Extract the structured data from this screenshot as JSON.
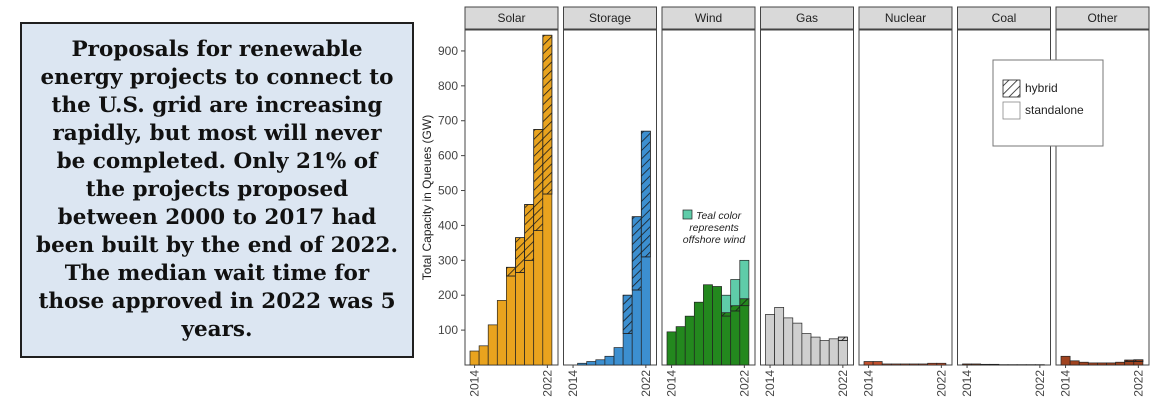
{
  "callout": {
    "text": "Proposals for renewable energy projects to connect to the U.S. grid are increasing rapidly, but most will never be completed.  Only 21% of the projects proposed between 2000 to 2017 had been built by the end of 2022.  The median wait time for those approved in 2022 was 5 years."
  },
  "chart_data": {
    "type": "bar",
    "stacked": true,
    "faceted": true,
    "ylabel": "Total Capacity in Queues (GW)",
    "ylim": [
      0,
      960
    ],
    "yticks": [
      100,
      200,
      300,
      400,
      500,
      600,
      700,
      800,
      900
    ],
    "years": [
      2014,
      2015,
      2016,
      2017,
      2018,
      2019,
      2020,
      2021,
      2022
    ],
    "x_tick_labels": [
      "2014",
      "2022"
    ],
    "grid": false,
    "legend": {
      "position": "top-right",
      "entries": [
        {
          "label": "hybrid",
          "pattern": "hatched"
        },
        {
          "label": "standalone",
          "pattern": "plain"
        }
      ]
    },
    "annotation": {
      "panel": "Wind",
      "text_lines": [
        "Teal color",
        "represents",
        "offshore wind"
      ],
      "color": "#5fcca9"
    },
    "panels": [
      {
        "name": "Solar",
        "color": "#e9a31e",
        "standalone": [
          40,
          55,
          115,
          185,
          255,
          265,
          300,
          385,
          490
        ],
        "hybrid": [
          0,
          0,
          0,
          0,
          25,
          100,
          160,
          290,
          455
        ]
      },
      {
        "name": "Storage",
        "color": "#3c8fd0",
        "standalone": [
          0,
          5,
          10,
          15,
          25,
          50,
          90,
          215,
          310
        ],
        "hybrid": [
          0,
          0,
          0,
          0,
          0,
          0,
          110,
          210,
          360
        ]
      },
      {
        "name": "Wind",
        "color": "#23881e",
        "offshore_color": "#5fcca9",
        "standalone": [
          95,
          110,
          140,
          180,
          230,
          225,
          140,
          155,
          170
        ],
        "hybrid": [
          0,
          0,
          0,
          0,
          0,
          0,
          10,
          15,
          20
        ],
        "offshore": [
          0,
          0,
          0,
          0,
          0,
          0,
          50,
          75,
          110
        ]
      },
      {
        "name": "Gas",
        "color": "#cfcfcf",
        "standalone": [
          145,
          165,
          135,
          120,
          90,
          80,
          70,
          75,
          70
        ],
        "hybrid": [
          0,
          0,
          0,
          0,
          0,
          0,
          0,
          0,
          10
        ]
      },
      {
        "name": "Nuclear",
        "color": "#c0502d",
        "standalone": [
          10,
          10,
          3,
          3,
          3,
          3,
          3,
          5,
          5
        ],
        "hybrid": [
          0,
          0,
          0,
          0,
          0,
          0,
          0,
          0,
          0
        ]
      },
      {
        "name": "Coal",
        "color": "#7a3a16",
        "standalone": [
          3,
          3,
          2,
          2,
          1,
          1,
          1,
          1,
          1
        ],
        "hybrid": [
          0,
          0,
          0,
          0,
          0,
          0,
          0,
          0,
          0
        ]
      },
      {
        "name": "Other",
        "color": "#a0431f",
        "standalone": [
          25,
          12,
          8,
          6,
          6,
          6,
          8,
          10,
          10
        ],
        "hybrid": [
          0,
          0,
          0,
          0,
          0,
          0,
          0,
          4,
          5
        ]
      }
    ]
  }
}
